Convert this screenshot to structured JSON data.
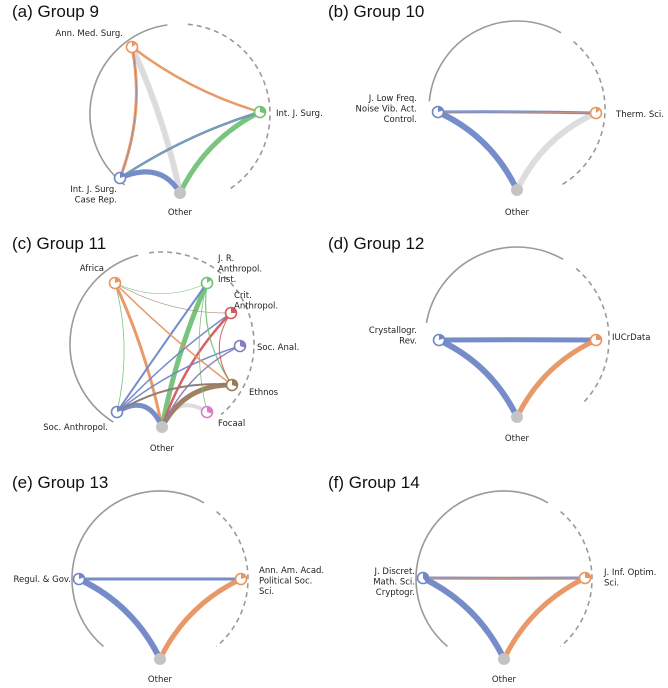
{
  "figure": {
    "colors": {
      "blue": "#6f87c7",
      "orange": "#e89560",
      "green": "#72c276",
      "red": "#d45a5a",
      "purple": "#8a7dbb",
      "brown": "#9a7a5c",
      "pink": "#d67fc6",
      "grey": "#d9d9d9",
      "other_node": "#c4c4c4",
      "arc": "#9a9a9a"
    },
    "panels": [
      {
        "id": "a",
        "title": "(a) Group 9",
        "nodes": [
          {
            "key": "amms",
            "label": [
              "Ann. Med. Surg."
            ],
            "color": "orange",
            "fill": 0.15
          },
          {
            "key": "ijs",
            "label": [
              "Int. J. Surg."
            ],
            "color": "green",
            "fill": 0.3
          },
          {
            "key": "ijscr",
            "label": [
              "Int. J. Surg.",
              "Case Rep."
            ],
            "color": "blue",
            "fill": 0.2
          },
          {
            "key": "other",
            "label": [
              "Other"
            ],
            "color": "other_node",
            "fill": 1
          }
        ],
        "edges": [
          {
            "from": "amms",
            "to": "ijs",
            "color": "orange",
            "weight": 2.5
          },
          {
            "from": "amms",
            "to": "ijscr",
            "color": "orange",
            "weight": 3
          },
          {
            "from": "amms",
            "to": "other",
            "color": "grey",
            "weight": 6
          },
          {
            "from": "ijs",
            "to": "other",
            "color": "green",
            "weight": 5
          },
          {
            "from": "ijs",
            "to": "ijscr",
            "color": "blue",
            "weight": 2.5
          },
          {
            "from": "ijscr",
            "to": "other",
            "color": "blue",
            "weight": 5
          },
          {
            "from": "amms",
            "to": "other",
            "color": "grey",
            "weight": 1.5
          },
          {
            "from": "ijs",
            "to": "ijscr",
            "color": "green",
            "weight": 0.6
          },
          {
            "from": "amms",
            "to": "ijscr",
            "color": "blue",
            "weight": 0.6
          }
        ]
      },
      {
        "id": "b",
        "title": "(b) Group 10",
        "nodes": [
          {
            "key": "jlfn",
            "label": [
              "J. Low Freq.",
              "Noise Vib. Act.",
              "Control."
            ],
            "color": "blue",
            "fill": 0.2
          },
          {
            "key": "ts",
            "label": [
              "Therm. Sci."
            ],
            "color": "orange",
            "fill": 0.15
          },
          {
            "key": "other",
            "label": [
              "Other"
            ],
            "color": "other_node",
            "fill": 1
          }
        ],
        "edges": [
          {
            "from": "jlfn",
            "to": "ts",
            "color": "blue",
            "weight": 3
          },
          {
            "from": "jlfn",
            "to": "other",
            "color": "blue",
            "weight": 6
          },
          {
            "from": "ts",
            "to": "other",
            "color": "grey",
            "weight": 6
          },
          {
            "from": "ts",
            "to": "jlfn",
            "color": "orange",
            "weight": 0.7
          }
        ]
      },
      {
        "id": "c",
        "title": "(c) Group 11",
        "nodes": [
          {
            "key": "africa",
            "label": [
              "Africa"
            ],
            "color": "orange",
            "fill": 0.2
          },
          {
            "key": "jrai",
            "label": [
              "J. R.",
              "Anthropol.",
              "Inst."
            ],
            "color": "green",
            "fill": 0.15
          },
          {
            "key": "crit",
            "label": [
              "Crit.",
              "Anthropol."
            ],
            "color": "red",
            "fill": 0.25
          },
          {
            "key": "soca",
            "label": [
              "Soc. Anal."
            ],
            "color": "purple",
            "fill": 0.3
          },
          {
            "key": "ethnos",
            "label": [
              "Ethnos"
            ],
            "color": "brown",
            "fill": 0.3
          },
          {
            "key": "focaal",
            "label": [
              "Focaal"
            ],
            "color": "pink",
            "fill": 0.3
          },
          {
            "key": "socanth",
            "label": [
              "Soc. Anthropol."
            ],
            "color": "blue",
            "fill": 0.2
          },
          {
            "key": "other",
            "label": [
              "Other"
            ],
            "color": "other_node",
            "fill": 1
          }
        ],
        "edges": [
          {
            "from": "africa",
            "to": "other",
            "color": "orange",
            "weight": 3
          },
          {
            "from": "jrai",
            "to": "other",
            "color": "green",
            "weight": 5
          },
          {
            "from": "jrai",
            "to": "socanth",
            "color": "blue",
            "weight": 2
          },
          {
            "from": "crit",
            "to": "other",
            "color": "red",
            "weight": 2.5
          },
          {
            "from": "ethnos",
            "to": "other",
            "color": "brown",
            "weight": 5
          },
          {
            "from": "socanth",
            "to": "other",
            "color": "blue",
            "weight": 5
          },
          {
            "from": "socanth",
            "to": "ethnos",
            "color": "blue",
            "weight": 2
          },
          {
            "from": "socanth",
            "to": "crit",
            "color": "blue",
            "weight": 1.5
          },
          {
            "from": "socanth",
            "to": "soca",
            "color": "blue",
            "weight": 1.5
          },
          {
            "from": "africa",
            "to": "ethnos",
            "color": "orange",
            "weight": 1.5
          },
          {
            "from": "africa",
            "to": "socanth",
            "color": "green",
            "weight": 0.8
          },
          {
            "from": "africa",
            "to": "jrai",
            "color": "green",
            "weight": 0.6
          },
          {
            "from": "africa",
            "to": "crit",
            "color": "brown",
            "weight": 0.6
          },
          {
            "from": "jrai",
            "to": "ethnos",
            "color": "green",
            "weight": 1.2
          },
          {
            "from": "jrai",
            "to": "focaal",
            "color": "green",
            "weight": 0.8
          },
          {
            "from": "soca",
            "to": "other",
            "color": "purple",
            "weight": 1.5
          },
          {
            "from": "focaal",
            "to": "other",
            "color": "grey",
            "weight": 4
          },
          {
            "from": "ethnos",
            "to": "socanth",
            "color": "brown",
            "weight": 1.5
          },
          {
            "from": "crit",
            "to": "ethnos",
            "color": "red",
            "weight": 1
          },
          {
            "from": "jrai",
            "to": "other",
            "color": "grey",
            "weight": 2
          }
        ]
      },
      {
        "id": "d",
        "title": "(d) Group 12",
        "nodes": [
          {
            "key": "cr",
            "label": [
              "Crystallogr.",
              "Rev."
            ],
            "color": "blue",
            "fill": 0.2
          },
          {
            "key": "iucr",
            "label": [
              "IUCrData"
            ],
            "color": "orange",
            "fill": 0.25
          },
          {
            "key": "other",
            "label": [
              "Other"
            ],
            "color": "other_node",
            "fill": 1
          }
        ],
        "edges": [
          {
            "from": "cr",
            "to": "iucr",
            "color": "blue",
            "weight": 5
          },
          {
            "from": "cr",
            "to": "other",
            "color": "blue",
            "weight": 6
          },
          {
            "from": "iucr",
            "to": "other",
            "color": "orange",
            "weight": 5
          },
          {
            "from": "cr",
            "to": "other",
            "color": "grey",
            "weight": 2
          },
          {
            "from": "iucr",
            "to": "other",
            "color": "grey",
            "weight": 5
          }
        ]
      },
      {
        "id": "e",
        "title": "(e) Group 13",
        "nodes": [
          {
            "key": "rg",
            "label": [
              "Regul. & Gov."
            ],
            "color": "blue",
            "fill": 0.2
          },
          {
            "key": "aaap",
            "label": [
              "Ann. Am. Acad.",
              "Political Soc.",
              "Sci."
            ],
            "color": "orange",
            "fill": 0.2
          },
          {
            "key": "other",
            "label": [
              "Other"
            ],
            "color": "other_node",
            "fill": 1
          }
        ],
        "edges": [
          {
            "from": "rg",
            "to": "aaap",
            "color": "blue",
            "weight": 3
          },
          {
            "from": "rg",
            "to": "other",
            "color": "blue",
            "weight": 6
          },
          {
            "from": "aaap",
            "to": "other",
            "color": "orange",
            "weight": 5
          },
          {
            "from": "rg",
            "to": "other",
            "color": "grey",
            "weight": 4
          },
          {
            "from": "aaap",
            "to": "other",
            "color": "grey",
            "weight": 5
          }
        ]
      },
      {
        "id": "f",
        "title": "(f) Group 14",
        "nodes": [
          {
            "key": "jdms",
            "label": [
              "J. Discret.",
              "Math. Sci.",
              "Cryptogr."
            ],
            "color": "blue",
            "fill": 0.4
          },
          {
            "key": "jios",
            "label": [
              "J. Inf. Optim.",
              "Sci."
            ],
            "color": "orange",
            "fill": 0.25
          },
          {
            "key": "other",
            "label": [
              "Other"
            ],
            "color": "other_node",
            "fill": 1
          }
        ],
        "edges": [
          {
            "from": "jdms",
            "to": "jios",
            "color": "blue",
            "weight": 3
          },
          {
            "from": "jdms",
            "to": "other",
            "color": "blue",
            "weight": 6
          },
          {
            "from": "jios",
            "to": "other",
            "color": "orange",
            "weight": 5
          },
          {
            "from": "jdms",
            "to": "other",
            "color": "grey",
            "weight": 4
          },
          {
            "from": "jios",
            "to": "other",
            "color": "grey",
            "weight": 5
          },
          {
            "from": "jios",
            "to": "jdms",
            "color": "orange",
            "weight": 1
          }
        ]
      }
    ]
  }
}
